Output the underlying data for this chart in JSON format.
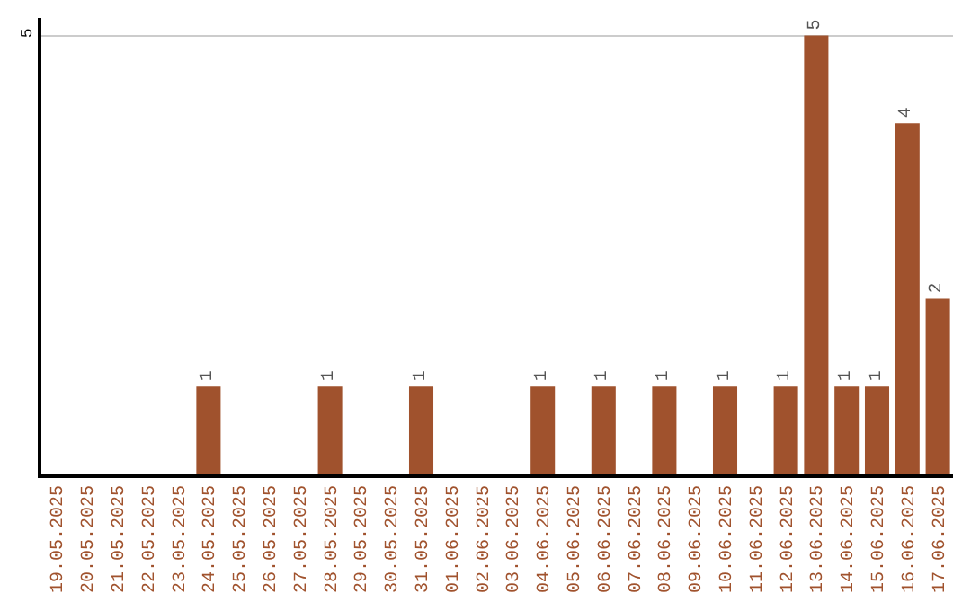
{
  "chart_data": {
    "type": "bar",
    "categories": [
      "19.05.2025",
      "20.05.2025",
      "21.05.2025",
      "22.05.2025",
      "23.05.2025",
      "24.05.2025",
      "25.05.2025",
      "26.05.2025",
      "27.05.2025",
      "28.05.2025",
      "29.05.2025",
      "30.05.2025",
      "31.05.2025",
      "01.06.2025",
      "02.06.2025",
      "03.06.2025",
      "04.06.2025",
      "05.06.2025",
      "06.06.2025",
      "07.06.2025",
      "08.06.2025",
      "09.06.2025",
      "10.06.2025",
      "11.06.2025",
      "12.06.2025",
      "13.06.2025",
      "14.06.2025",
      "15.06.2025",
      "16.06.2025",
      "17.06.2025"
    ],
    "values": [
      null,
      null,
      null,
      null,
      null,
      1,
      null,
      null,
      null,
      1,
      null,
      null,
      1,
      null,
      null,
      null,
      1,
      null,
      1,
      null,
      1,
      null,
      1,
      null,
      1,
      5,
      1,
      1,
      4,
      2
    ],
    "color": "#a0522d",
    "ylim": [
      0,
      5.2
    ],
    "yticks": [
      {
        "value": 0,
        "label": null
      },
      5
    ],
    "grid": "y",
    "data_labels": true
  }
}
